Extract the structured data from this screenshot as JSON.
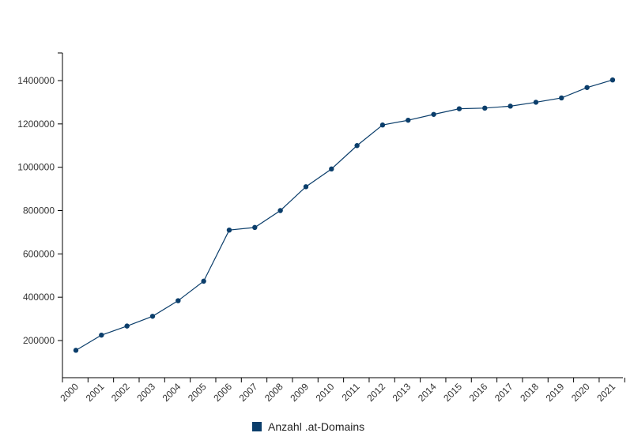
{
  "chart_data": {
    "type": "line",
    "title": "",
    "xlabel": "",
    "ylabel": "",
    "categories": [
      "2000",
      "2001",
      "2002",
      "2003",
      "2004",
      "2005",
      "2006",
      "2007",
      "2008",
      "2009",
      "2010",
      "2011",
      "2012",
      "2013",
      "2014",
      "2015",
      "2016",
      "2017",
      "2018",
      "2019",
      "2020",
      "2021"
    ],
    "series": [
      {
        "name": "Anzahl .at-Domains",
        "color": "#0b3e6b",
        "values": [
          155000,
          225000,
          267000,
          312000,
          384000,
          474000,
          710000,
          722000,
          800000,
          910000,
          992000,
          1100000,
          1195000,
          1217000,
          1244000,
          1270000,
          1273000,
          1282000,
          1300000,
          1320000,
          1368000,
          1403000
        ]
      }
    ],
    "yticks": [
      "200000",
      "400000",
      "600000",
      "800000",
      "1000000",
      "1200000",
      "1400000"
    ],
    "ylim": [
      0,
      1500000
    ],
    "grid": false,
    "legend_position": "bottom"
  }
}
